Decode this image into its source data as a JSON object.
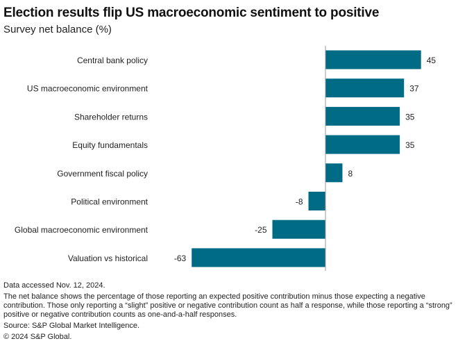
{
  "chart_data": {
    "type": "bar",
    "orientation": "horizontal",
    "title": "Election results flip US macroeconomic sentiment to positive",
    "subtitle": "Survey net balance (%)",
    "categories": [
      "Central bank policy",
      "US macroeconomic environment",
      "Shareholder returns",
      "Equity fundamentals",
      "Government fiscal policy",
      "Political environment",
      "Global macroeconomic environment",
      "Valuation vs historical"
    ],
    "values": [
      45,
      37,
      35,
      35,
      8,
      -8,
      -25,
      -63
    ],
    "value_labels": [
      "45",
      "37",
      "35",
      "35",
      "8",
      "-8",
      "-25",
      "-63"
    ],
    "xlabel": "",
    "ylabel": "",
    "xlim": [
      -63,
      45
    ],
    "grid": false,
    "bar_color": "#006b85"
  },
  "notes": {
    "accessed": "Data accessed Nov. 12, 2024.",
    "definition": "The net balance shows the percentage of those reporting an expected positive contribution minus those expecting a negative contribution. Those only reporting a “slight” positive or negative contribution count as half a response, while those reporting a “strong” positive or negative contribution counts as one-and-a-half responses.",
    "source": "Source: S&P Global Market Intelligence.",
    "copyright": "© 2024 S&P Global."
  }
}
